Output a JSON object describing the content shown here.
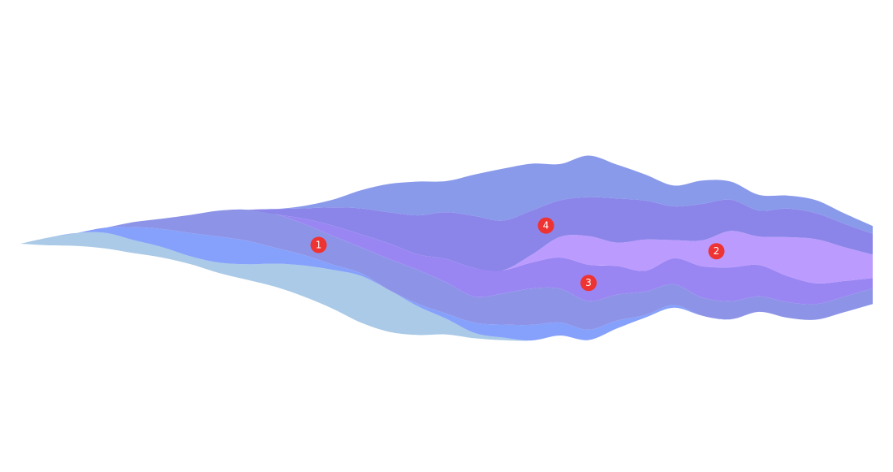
{
  "chart_data": {
    "type": "area",
    "subtype": "streamgraph",
    "title": "",
    "xlabel": "",
    "ylabel": "",
    "grid": false,
    "legend": "none",
    "x": [
      0,
      1,
      2,
      3,
      4,
      5,
      6,
      7,
      8,
      9,
      10,
      11,
      12,
      13,
      14,
      15,
      16,
      17,
      18,
      19,
      20,
      21,
      22,
      23,
      24,
      25,
      26,
      27,
      28,
      29,
      30
    ],
    "series": [
      {
        "color": "#a5c7e6",
        "values": [
          0,
          3,
          5,
          6,
          5,
          4,
          3,
          4,
          6,
          9,
          12,
          15,
          18,
          16,
          11,
          6,
          2,
          1,
          0,
          0,
          0,
          0,
          0,
          0,
          0,
          0,
          0,
          0,
          0,
          0,
          0
        ]
      },
      {
        "color": "#7f9cfc",
        "values": [
          0,
          0,
          0,
          2,
          5,
          7,
          9,
          10,
          9,
          6,
          4,
          2,
          1,
          0,
          1,
          2,
          4,
          5,
          6,
          5,
          4,
          3,
          1,
          1,
          0,
          0,
          0,
          0,
          0,
          0,
          0
        ]
      },
      {
        "color": "#878ee6",
        "values": [
          0,
          0,
          0,
          0,
          2,
          4,
          7,
          10,
          12,
          13,
          12,
          11,
          10,
          12,
          13,
          12,
          10,
          12,
          14,
          13,
          11,
          10,
          9,
          8,
          7,
          7,
          6,
          6,
          6,
          6,
          6
        ]
      },
      {
        "color": "#9580f2",
        "values": [
          0,
          0,
          0,
          0,
          0,
          0,
          0,
          0,
          0,
          0,
          2,
          4,
          5,
          6,
          6,
          9,
          11,
          9,
          10,
          12,
          14,
          11,
          8,
          10,
          12,
          13,
          12,
          10,
          8,
          6,
          4
        ]
      },
      {
        "color": "#b896fe",
        "values": [
          0,
          0,
          0,
          0,
          0,
          0,
          0,
          0,
          0,
          0,
          0,
          0,
          0,
          0,
          0,
          0,
          0,
          0,
          3,
          8,
          11,
          9,
          12,
          7,
          10,
          14,
          11,
          15,
          17,
          13,
          9
        ]
      },
      {
        "color": "#857ee8",
        "values": [
          0,
          0,
          0,
          0,
          0,
          0,
          0,
          0,
          0,
          2,
          4,
          7,
          10,
          12,
          15,
          18,
          20,
          19,
          17,
          14,
          15,
          17,
          15,
          13,
          14,
          12,
          10,
          11,
          10,
          9,
          8
        ]
      },
      {
        "color": "#8395ea",
        "values": [
          0,
          0,
          0,
          0,
          0,
          0,
          0,
          0,
          0,
          0,
          1,
          3,
          7,
          11,
          13,
          12,
          16,
          20,
          18,
          14,
          16,
          13,
          10,
          8,
          9,
          7,
          6,
          5,
          5,
          4,
          3
        ]
      }
    ],
    "annotations": [
      {
        "label": "1",
        "x": 10.5,
        "series": 2,
        "color": "#ee3333"
      },
      {
        "label": "2",
        "x": 24.5,
        "series": 4,
        "color": "#ee3333"
      },
      {
        "label": "3",
        "x": 20,
        "series": 3,
        "color": "#ee3333"
      },
      {
        "label": "4",
        "x": 18.5,
        "series": 5,
        "color": "#ee3333"
      }
    ]
  }
}
